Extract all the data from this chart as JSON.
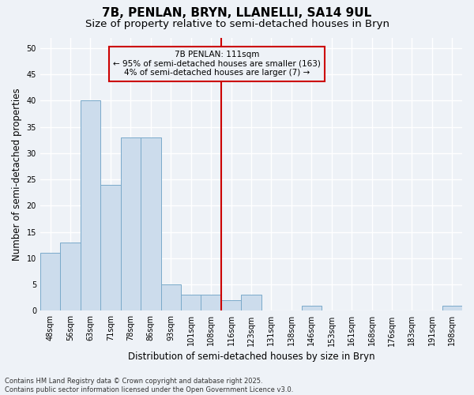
{
  "title": "7B, PENLAN, BRYN, LLANELLI, SA14 9UL",
  "subtitle": "Size of property relative to semi-detached houses in Bryn",
  "xlabel": "Distribution of semi-detached houses by size in Bryn",
  "ylabel": "Number of semi-detached properties",
  "categories": [
    "48sqm",
    "56sqm",
    "63sqm",
    "71sqm",
    "78sqm",
    "86sqm",
    "93sqm",
    "101sqm",
    "108sqm",
    "116sqm",
    "123sqm",
    "131sqm",
    "138sqm",
    "146sqm",
    "153sqm",
    "161sqm",
    "168sqm",
    "176sqm",
    "183sqm",
    "191sqm",
    "198sqm"
  ],
  "values": [
    11,
    13,
    40,
    24,
    33,
    33,
    5,
    3,
    3,
    2,
    3,
    0,
    0,
    1,
    0,
    0,
    0,
    0,
    0,
    0,
    1
  ],
  "bar_color": "#ccdcec",
  "bar_edge_color": "#7aaaca",
  "property_label": "7B PENLAN: 111sqm",
  "annotation_line1": "← 95% of semi-detached houses are smaller (163)",
  "annotation_line2": "4% of semi-detached houses are larger (7) →",
  "vline_color": "#cc0000",
  "vline_position": 8.5,
  "ylim": [
    0,
    52
  ],
  "yticks": [
    0,
    5,
    10,
    15,
    20,
    25,
    30,
    35,
    40,
    45,
    50
  ],
  "annotation_box_color": "#cc0000",
  "footer_line1": "Contains HM Land Registry data © Crown copyright and database right 2025.",
  "footer_line2": "Contains public sector information licensed under the Open Government Licence v3.0.",
  "background_color": "#eef2f7",
  "grid_color": "#ffffff",
  "title_fontsize": 11,
  "subtitle_fontsize": 9.5,
  "tick_fontsize": 7,
  "ylabel_fontsize": 8.5,
  "xlabel_fontsize": 8.5,
  "annotation_fontsize": 7.5,
  "footer_fontsize": 6
}
